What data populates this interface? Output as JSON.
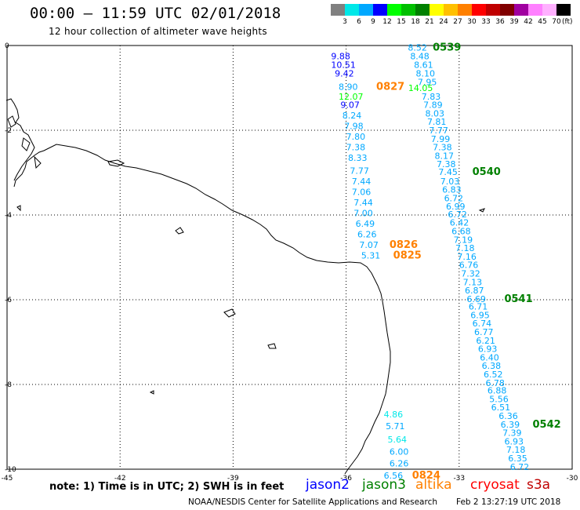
{
  "title": "00:00 – 11:59 UTC 02/01/2018",
  "subtitle": "12 hour collection of altimeter wave heights",
  "colorbar": {
    "colors": [
      "#808080",
      "#00e8e8",
      "#00a8ff",
      "#0000ff",
      "#00ff00",
      "#00c000",
      "#008000",
      "#ffff00",
      "#ffc000",
      "#ff8000",
      "#ff0000",
      "#c00000",
      "#800000",
      "#a000a0",
      "#ff80ff",
      "#ffb0ff",
      "#000000"
    ],
    "labels": [
      "3",
      "6",
      "9",
      "12",
      "15",
      "18",
      "21",
      "24",
      "27",
      "30",
      "33",
      "36",
      "39",
      "42",
      "45",
      "70"
    ],
    "unit": "(ft)"
  },
  "axes": {
    "x_ticks": [
      "-45",
      "-42",
      "-39",
      "-36",
      "-33",
      "-30"
    ],
    "y_ticks": [
      "0",
      "-2",
      "-4",
      "-6",
      "-8",
      "-10"
    ]
  },
  "labels": [
    {
      "t": "8.52",
      "x": -34.36,
      "y": -0.05,
      "c": "#00a8ff"
    },
    {
      "t": "0539",
      "x": -33.7,
      "y": -0.05,
      "c": "#008000"
    },
    {
      "t": "9.88",
      "x": -36.4,
      "y": -0.25,
      "c": "#0000ff"
    },
    {
      "t": "8.48",
      "x": -34.3,
      "y": -0.25,
      "c": "#00a8ff"
    },
    {
      "t": "10.51",
      "x": -36.4,
      "y": -0.45,
      "c": "#0000ff"
    },
    {
      "t": "8.61",
      "x": -34.2,
      "y": -0.45,
      "c": "#00a8ff"
    },
    {
      "t": "9.42",
      "x": -36.3,
      "y": -0.66,
      "c": "#0000ff"
    },
    {
      "t": "8.10",
      "x": -34.15,
      "y": -0.66,
      "c": "#00a8ff"
    },
    {
      "t": "7.95",
      "x": -34.1,
      "y": -0.86,
      "c": "#00a8ff"
    },
    {
      "t": "8.90",
      "x": -36.2,
      "y": -0.97,
      "c": "#00a8ff"
    },
    {
      "t": "0827",
      "x": -35.2,
      "y": -0.97,
      "c": "#ff8000"
    },
    {
      "t": "14.05",
      "x": -34.35,
      "y": -1.0,
      "c": "#00ff00"
    },
    {
      "t": "12.07",
      "x": -36.2,
      "y": -1.2,
      "c": "#00ff00"
    },
    {
      "t": "7.83",
      "x": -34.0,
      "y": -1.2,
      "c": "#00a8ff"
    },
    {
      "t": "9.07",
      "x": -36.15,
      "y": -1.4,
      "c": "#0000ff"
    },
    {
      "t": "7.89",
      "x": -33.95,
      "y": -1.4,
      "c": "#00a8ff"
    },
    {
      "t": "8.03",
      "x": -33.9,
      "y": -1.6,
      "c": "#00a8ff"
    },
    {
      "t": "8.24",
      "x": -36.1,
      "y": -1.65,
      "c": "#00a8ff"
    },
    {
      "t": "7.81",
      "x": -33.85,
      "y": -1.8,
      "c": "#00a8ff"
    },
    {
      "t": "7.98",
      "x": -36.05,
      "y": -1.9,
      "c": "#00a8ff"
    },
    {
      "t": "7.77",
      "x": -33.8,
      "y": -2.0,
      "c": "#00a8ff"
    },
    {
      "t": "7.80",
      "x": -36.0,
      "y": -2.15,
      "c": "#00a8ff"
    },
    {
      "t": "7.99",
      "x": -33.75,
      "y": -2.2,
      "c": "#00a8ff"
    },
    {
      "t": "7.38",
      "x": -36.0,
      "y": -2.4,
      "c": "#00a8ff"
    },
    {
      "t": "7.38",
      "x": -33.7,
      "y": -2.4,
      "c": "#00a8ff"
    },
    {
      "t": "8.17",
      "x": -33.65,
      "y": -2.6,
      "c": "#00a8ff"
    },
    {
      "t": "8.33",
      "x": -35.95,
      "y": -2.65,
      "c": "#00a8ff"
    },
    {
      "t": "7.38",
      "x": -33.6,
      "y": -2.8,
      "c": "#00a8ff"
    },
    {
      "t": "7.77",
      "x": -35.9,
      "y": -2.95,
      "c": "#00a8ff"
    },
    {
      "t": "7.45",
      "x": -33.55,
      "y": -2.98,
      "c": "#00a8ff"
    },
    {
      "t": "0540",
      "x": -32.65,
      "y": -2.98,
      "c": "#008000"
    },
    {
      "t": "7.44",
      "x": -35.85,
      "y": -3.2,
      "c": "#00a8ff"
    },
    {
      "t": "7.03",
      "x": -33.5,
      "y": -3.2,
      "c": "#00a8ff"
    },
    {
      "t": "7.06",
      "x": -35.85,
      "y": -3.45,
      "c": "#00a8ff"
    },
    {
      "t": "6.83",
      "x": -33.45,
      "y": -3.4,
      "c": "#00a8ff"
    },
    {
      "t": "6.72",
      "x": -33.4,
      "y": -3.6,
      "c": "#00a8ff"
    },
    {
      "t": "7.44",
      "x": -35.8,
      "y": -3.7,
      "c": "#00a8ff"
    },
    {
      "t": "6.99",
      "x": -33.35,
      "y": -3.8,
      "c": "#00a8ff"
    },
    {
      "t": "7.00",
      "x": -35.8,
      "y": -3.95,
      "c": "#00a8ff"
    },
    {
      "t": "6.72",
      "x": -33.3,
      "y": -3.98,
      "c": "#00a8ff"
    },
    {
      "t": "6.49",
      "x": -35.75,
      "y": -4.2,
      "c": "#00a8ff"
    },
    {
      "t": "6.42",
      "x": -33.25,
      "y": -4.18,
      "c": "#00a8ff"
    },
    {
      "t": "6.26",
      "x": -35.7,
      "y": -4.45,
      "c": "#00a8ff"
    },
    {
      "t": "6.68",
      "x": -33.2,
      "y": -4.38,
      "c": "#00a8ff"
    },
    {
      "t": "7.19",
      "x": -33.15,
      "y": -4.58,
      "c": "#00a8ff"
    },
    {
      "t": "7.07",
      "x": -35.65,
      "y": -4.7,
      "c": "#00a8ff"
    },
    {
      "t": "0826",
      "x": -34.85,
      "y": -4.7,
      "c": "#ff8000"
    },
    {
      "t": "7.18",
      "x": -33.1,
      "y": -4.78,
      "c": "#00a8ff"
    },
    {
      "t": "5.31",
      "x": -35.6,
      "y": -4.95,
      "c": "#00a8ff"
    },
    {
      "t": "0825",
      "x": -34.75,
      "y": -4.95,
      "c": "#ff8000"
    },
    {
      "t": "7.16",
      "x": -33.05,
      "y": -4.98,
      "c": "#00a8ff"
    },
    {
      "t": "6.76",
      "x": -33.0,
      "y": -5.18,
      "c": "#00a8ff"
    },
    {
      "t": "7.32",
      "x": -32.95,
      "y": -5.38,
      "c": "#00a8ff"
    },
    {
      "t": "7.13",
      "x": -32.9,
      "y": -5.58,
      "c": "#00a8ff"
    },
    {
      "t": "6.87",
      "x": -32.85,
      "y": -5.78,
      "c": "#00a8ff"
    },
    {
      "t": "6.69",
      "x": -32.8,
      "y": -5.98,
      "c": "#00a8ff"
    },
    {
      "t": "0541",
      "x": -31.8,
      "y": -5.98,
      "c": "#008000"
    },
    {
      "t": "6.71",
      "x": -32.75,
      "y": -6.16,
      "c": "#00a8ff"
    },
    {
      "t": "6.95",
      "x": -32.7,
      "y": -6.36,
      "c": "#00a8ff"
    },
    {
      "t": "6.74",
      "x": -32.65,
      "y": -6.56,
      "c": "#00a8ff"
    },
    {
      "t": "6.77",
      "x": -32.6,
      "y": -6.76,
      "c": "#00a8ff"
    },
    {
      "t": "6.21",
      "x": -32.55,
      "y": -6.96,
      "c": "#00a8ff"
    },
    {
      "t": "6.93",
      "x": -32.5,
      "y": -7.16,
      "c": "#00a8ff"
    },
    {
      "t": "6.40",
      "x": -32.45,
      "y": -7.36,
      "c": "#00a8ff"
    },
    {
      "t": "6.38",
      "x": -32.4,
      "y": -7.56,
      "c": "#00a8ff"
    },
    {
      "t": "6.52",
      "x": -32.35,
      "y": -7.76,
      "c": "#00a8ff"
    },
    {
      "t": "6.78",
      "x": -32.3,
      "y": -7.96,
      "c": "#00a8ff"
    },
    {
      "t": "6.88",
      "x": -32.25,
      "y": -8.14,
      "c": "#00a8ff"
    },
    {
      "t": "5.56",
      "x": -32.2,
      "y": -8.34,
      "c": "#00a8ff"
    },
    {
      "t": "6.51",
      "x": -32.15,
      "y": -8.54,
      "c": "#00a8ff"
    },
    {
      "t": "6.36",
      "x": -31.95,
      "y": -8.74,
      "c": "#00a8ff"
    },
    {
      "t": "6.39",
      "x": -31.9,
      "y": -8.94,
      "c": "#00a8ff"
    },
    {
      "t": "0542",
      "x": -31.05,
      "y": -8.94,
      "c": "#008000"
    },
    {
      "t": "7.39",
      "x": -31.85,
      "y": -9.14,
      "c": "#00a8ff"
    },
    {
      "t": "6.93",
      "x": -31.8,
      "y": -9.34,
      "c": "#00a8ff"
    },
    {
      "t": "7.18",
      "x": -31.75,
      "y": -9.54,
      "c": "#00a8ff"
    },
    {
      "t": "6.35",
      "x": -31.7,
      "y": -9.74,
      "c": "#00a8ff"
    },
    {
      "t": "6.72",
      "x": -31.65,
      "y": -9.94,
      "c": "#00a8ff"
    },
    {
      "t": "4.86",
      "x": -35.0,
      "y": -8.7,
      "c": "#00e8e8"
    },
    {
      "t": "5.71",
      "x": -34.95,
      "y": -8.98,
      "c": "#00a8ff"
    },
    {
      "t": "5.64",
      "x": -34.9,
      "y": -9.3,
      "c": "#00e8e8"
    },
    {
      "t": "6.00",
      "x": -34.85,
      "y": -9.58,
      "c": "#00a8ff"
    },
    {
      "t": "6.26",
      "x": -34.85,
      "y": -9.86,
      "c": "#00a8ff"
    },
    {
      "t": "6.56",
      "x": -35.0,
      "y": -10.15,
      "c": "#00a8ff"
    },
    {
      "t": "0824",
      "x": -34.25,
      "y": -10.15,
      "c": "#ff8000"
    }
  ],
  "legend": {
    "note": "note: 1) Time is in UTC; 2) SWH is in feet",
    "names": [
      {
        "t": "jason2",
        "c": "#0000ff"
      },
      {
        "t": "jason3",
        "c": "#008000"
      },
      {
        "t": "altika",
        "c": "#ff8000"
      },
      {
        "t": "cryosat",
        "c": "#ff0000"
      },
      {
        "t": "s3a",
        "c": "#c00000"
      }
    ]
  },
  "credit": "NOAA/NESDIS Center for Satellite Applications and Research",
  "timestamp": "Feb  2 13:27:19 UTC 2018"
}
